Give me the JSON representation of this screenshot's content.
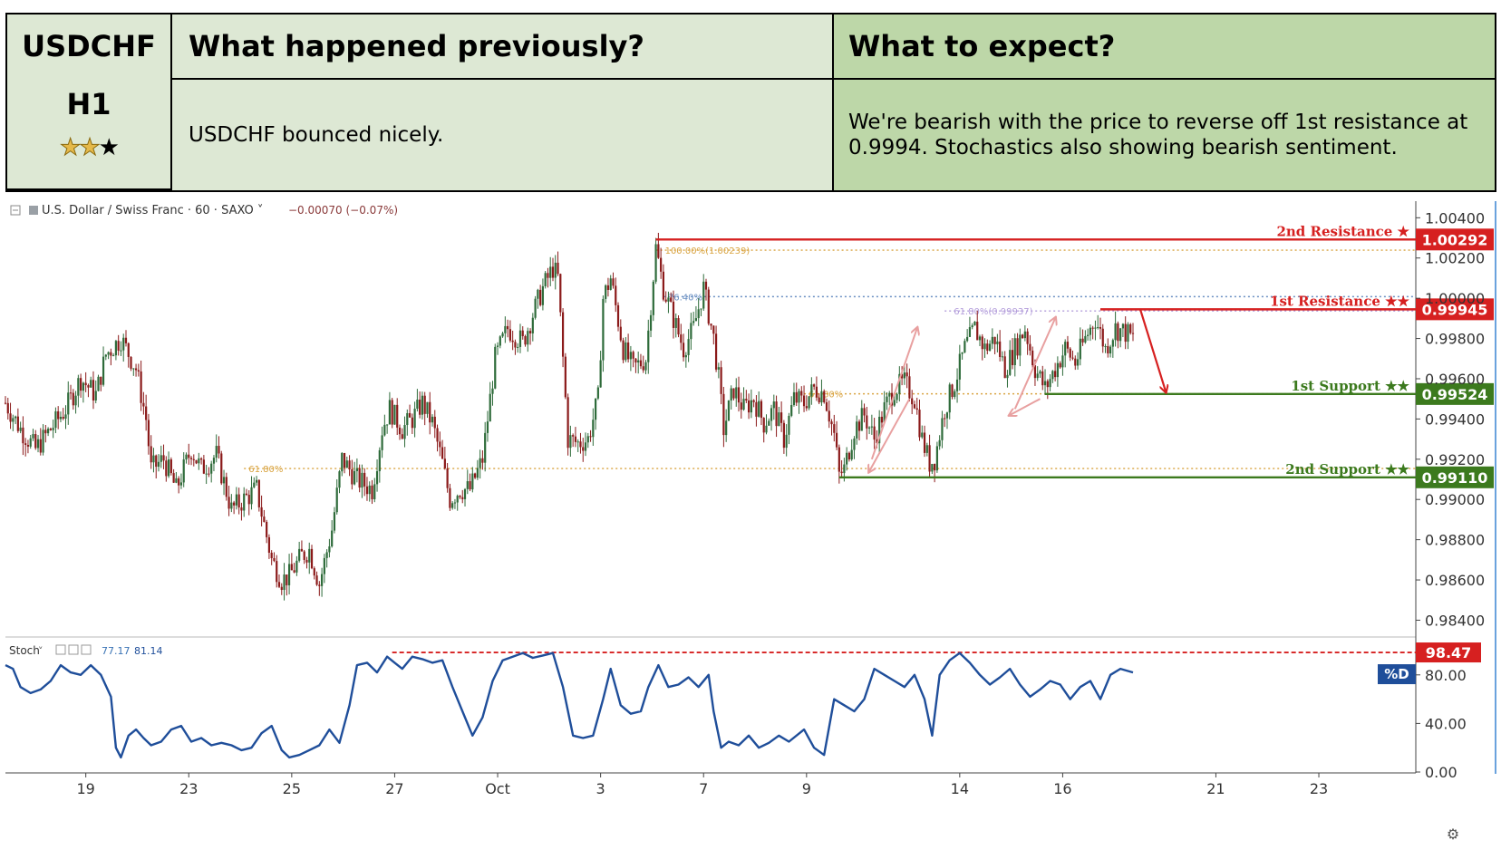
{
  "header": {
    "symbol": "USDCHF",
    "timeframe": "H1",
    "stars_filled": 2,
    "stars_total": 3,
    "col1_title": "What happened previously?",
    "col2_title": "What to expect?",
    "col1_text": "USDCHF bounced nicely.",
    "col2_text": "We're bearish with the price to reverse off 1st resistance at 0.9994. Stochastics also showing bearish sentiment."
  },
  "chart_data": {
    "type": "candlestick",
    "instrument": "U.S. Dollar / Swiss Franc",
    "interval": "60",
    "source": "SAXO",
    "change_text": "−0.00070 (−0.07%)",
    "price_ticks": [
      "1.00400",
      "1.00200",
      "1.00000",
      "0.99800",
      "0.99600",
      "0.99400",
      "0.99200",
      "0.99000",
      "0.98800",
      "0.98600",
      "0.98400"
    ],
    "price_range": [
      0.9833,
      1.0046
    ],
    "x_ticks": [
      "19",
      "23",
      "25",
      "27",
      "Oct",
      "3",
      "7",
      "9",
      "14",
      "16",
      "21",
      "23"
    ],
    "close_path": [
      [
        0,
        0.9948
      ],
      [
        6,
        0.9935
      ],
      [
        12,
        0.9925
      ],
      [
        18,
        0.9935
      ],
      [
        24,
        0.9945
      ],
      [
        30,
        0.996
      ],
      [
        36,
        0.9952
      ],
      [
        40,
        0.9972
      ],
      [
        46,
        0.998
      ],
      [
        52,
        0.9965
      ],
      [
        56,
        0.994
      ],
      [
        58,
        0.9915
      ],
      [
        63,
        0.992
      ],
      [
        68,
        0.9905
      ],
      [
        74,
        0.9925
      ],
      [
        78,
        0.9915
      ],
      [
        84,
        0.9922
      ],
      [
        90,
        0.9895
      ],
      [
        95,
        0.99
      ],
      [
        100,
        0.9905
      ],
      [
        106,
        0.987
      ],
      [
        110,
        0.986
      ],
      [
        113,
        0.9862
      ],
      [
        118,
        0.9872
      ],
      [
        121,
        0.9875
      ],
      [
        125,
        0.9858
      ],
      [
        130,
        0.9885
      ],
      [
        134,
        0.992
      ],
      [
        140,
        0.991
      ],
      [
        146,
        0.9905
      ],
      [
        150,
        0.9935
      ],
      [
        153,
        0.9945
      ],
      [
        158,
        0.9935
      ],
      [
        162,
        0.994
      ],
      [
        166,
        0.9948
      ],
      [
        170,
        0.9938
      ],
      [
        174,
        0.9918
      ],
      [
        177,
        0.99
      ],
      [
        181,
        0.9905
      ],
      [
        185,
        0.9905
      ],
      [
        190,
        0.992
      ],
      [
        195,
        0.997
      ],
      [
        200,
        0.9985
      ],
      [
        206,
        0.9978
      ],
      [
        210,
        0.9992
      ],
      [
        214,
        1.0005
      ],
      [
        218,
        1.0015
      ],
      [
        220,
        1.001
      ],
      [
        224,
        0.993
      ],
      [
        228,
        0.9928
      ],
      [
        232,
        0.993
      ],
      [
        236,
        0.995
      ],
      [
        238,
        1.0
      ],
      [
        241,
        1.001
      ],
      [
        246,
        0.9975
      ],
      [
        250,
        0.9965
      ],
      [
        255,
        0.997
      ],
      [
        259,
        1.0025
      ],
      [
        262,
        1.0005
      ],
      [
        266,
        0.999
      ],
      [
        270,
        0.9975
      ],
      [
        274,
        0.9985
      ],
      [
        278,
        1.0005
      ],
      [
        282,
        0.998
      ],
      [
        284,
        0.996
      ],
      [
        286,
        0.9935
      ],
      [
        290,
        0.9955
      ],
      [
        294,
        0.9945
      ],
      [
        298,
        0.995
      ],
      [
        302,
        0.9938
      ],
      [
        306,
        0.9945
      ],
      [
        310,
        0.993
      ],
      [
        314,
        0.995
      ],
      [
        318,
        0.9948
      ],
      [
        322,
        0.9955
      ],
      [
        326,
        0.9953
      ],
      [
        330,
        0.9932
      ],
      [
        332,
        0.9912
      ],
      [
        334,
        0.9915
      ],
      [
        338,
        0.9935
      ],
      [
        342,
        0.9942
      ],
      [
        346,
        0.993
      ],
      [
        350,
        0.9945
      ],
      [
        354,
        0.9955
      ],
      [
        358,
        0.9958
      ],
      [
        362,
        0.995
      ],
      [
        365,
        0.993
      ],
      [
        368,
        0.9918
      ],
      [
        370,
        0.992
      ],
      [
        374,
        0.9945
      ],
      [
        378,
        0.9958
      ],
      [
        382,
        0.9975
      ],
      [
        386,
        0.9985
      ],
      [
        390,
        0.9975
      ],
      [
        394,
        0.998
      ],
      [
        398,
        0.9965
      ],
      [
        402,
        0.9975
      ],
      [
        406,
        0.9985
      ],
      [
        410,
        0.9965
      ],
      [
        414,
        0.9955
      ],
      [
        418,
        0.9965
      ],
      [
        422,
        0.9975
      ],
      [
        426,
        0.9968
      ],
      [
        430,
        0.998
      ],
      [
        434,
        0.999
      ],
      [
        438,
        0.9975
      ],
      [
        442,
        0.9985
      ],
      [
        446,
        0.9983
      ],
      [
        449,
        0.998
      ]
    ],
    "x_index_max": 449,
    "levels": [
      {
        "label": "2nd Resistance ★",
        "value_label": "1.00292",
        "value": 1.00292,
        "color": "#d62020",
        "start_index": 259
      },
      {
        "label": "1st Resistance ★★",
        "value_label": "0.99945",
        "value": 0.99945,
        "color": "#d62020",
        "start_index": 436
      },
      {
        "label": "1st Support ★★",
        "value_label": "0.99524",
        "value": 0.99524,
        "color": "#3c7a1e",
        "start_index": 414
      },
      {
        "label": "2nd Support ★★",
        "value_label": "0.99110",
        "value": 0.9911,
        "color": "#3c7a1e",
        "start_index": 332
      }
    ],
    "fib_lines": [
      {
        "label": "100.00%(1.00239)",
        "value": 1.00239,
        "start_index": 259,
        "color": "#d9a441"
      },
      {
        "label": "76.40%",
        "value": 1.00008,
        "start_index": 262,
        "color": "#6a8fc2"
      },
      {
        "label": "61.80%(0.99937)",
        "value": 0.99937,
        "start_index": 374,
        "color": "#b39ddb"
      },
      {
        "label": "61.80%",
        "value": 0.99525,
        "start_index": 318,
        "color": "#d9a441"
      },
      {
        "label": "61.80%",
        "value": 0.99154,
        "start_index": 95,
        "color": "#d9a441"
      }
    ],
    "projection": {
      "from_index": 449,
      "from_value": 0.99945,
      "to_index": 462,
      "to_value": 0.99524
    },
    "stochastic": {
      "name": "Stoch",
      "k_value": "77.17",
      "d_value": "81.14",
      "series_label": "%D",
      "ticks": [
        "80.00",
        "40.00",
        "0.00"
      ],
      "range": [
        0,
        100
      ],
      "level_value": 98.47,
      "level_label": "98.47",
      "level_start_index": 154,
      "values": [
        [
          0,
          88
        ],
        [
          3,
          85
        ],
        [
          6,
          70
        ],
        [
          10,
          65
        ],
        [
          14,
          68
        ],
        [
          18,
          75
        ],
        [
          22,
          88
        ],
        [
          26,
          82
        ],
        [
          30,
          80
        ],
        [
          34,
          88
        ],
        [
          38,
          80
        ],
        [
          42,
          62
        ],
        [
          44,
          20
        ],
        [
          46,
          12
        ],
        [
          49,
          30
        ],
        [
          52,
          35
        ],
        [
          55,
          28
        ],
        [
          58,
          22
        ],
        [
          62,
          25
        ],
        [
          66,
          35
        ],
        [
          70,
          38
        ],
        [
          74,
          25
        ],
        [
          78,
          28
        ],
        [
          82,
          22
        ],
        [
          86,
          24
        ],
        [
          90,
          22
        ],
        [
          94,
          18
        ],
        [
          98,
          20
        ],
        [
          102,
          32
        ],
        [
          106,
          38
        ],
        [
          110,
          18
        ],
        [
          113,
          12
        ],
        [
          117,
          14
        ],
        [
          121,
          18
        ],
        [
          125,
          22
        ],
        [
          129,
          35
        ],
        [
          133,
          24
        ],
        [
          137,
          55
        ],
        [
          140,
          88
        ],
        [
          144,
          90
        ],
        [
          148,
          82
        ],
        [
          152,
          95
        ],
        [
          155,
          90
        ],
        [
          158,
          85
        ],
        [
          162,
          95
        ],
        [
          166,
          93
        ],
        [
          170,
          90
        ],
        [
          174,
          92
        ],
        [
          178,
          70
        ],
        [
          182,
          50
        ],
        [
          186,
          30
        ],
        [
          190,
          45
        ],
        [
          194,
          75
        ],
        [
          198,
          92
        ],
        [
          202,
          95
        ],
        [
          206,
          98
        ],
        [
          210,
          94
        ],
        [
          214,
          96
        ],
        [
          218,
          98
        ],
        [
          222,
          70
        ],
        [
          226,
          30
        ],
        [
          230,
          28
        ],
        [
          234,
          30
        ],
        [
          238,
          60
        ],
        [
          241,
          85
        ],
        [
          245,
          55
        ],
        [
          249,
          48
        ],
        [
          253,
          50
        ],
        [
          256,
          70
        ],
        [
          260,
          88
        ],
        [
          264,
          70
        ],
        [
          268,
          72
        ],
        [
          272,
          78
        ],
        [
          276,
          70
        ],
        [
          280,
          80
        ],
        [
          282,
          50
        ],
        [
          285,
          20
        ],
        [
          288,
          25
        ],
        [
          292,
          22
        ],
        [
          296,
          30
        ],
        [
          300,
          20
        ],
        [
          304,
          24
        ],
        [
          308,
          30
        ],
        [
          312,
          25
        ],
        [
          318,
          35
        ],
        [
          322,
          20
        ],
        [
          326,
          14
        ],
        [
          330,
          60
        ],
        [
          334,
          55
        ],
        [
          338,
          50
        ],
        [
          342,
          60
        ],
        [
          346,
          85
        ],
        [
          350,
          80
        ],
        [
          354,
          75
        ],
        [
          358,
          70
        ],
        [
          362,
          80
        ],
        [
          366,
          60
        ],
        [
          369,
          30
        ],
        [
          372,
          80
        ],
        [
          376,
          92
        ],
        [
          380,
          98
        ],
        [
          384,
          90
        ],
        [
          388,
          80
        ],
        [
          392,
          72
        ],
        [
          396,
          78
        ],
        [
          400,
          85
        ],
        [
          404,
          72
        ],
        [
          408,
          62
        ],
        [
          412,
          68
        ],
        [
          416,
          75
        ],
        [
          420,
          72
        ],
        [
          424,
          60
        ],
        [
          428,
          70
        ],
        [
          432,
          75
        ],
        [
          436,
          60
        ],
        [
          440,
          80
        ],
        [
          444,
          85
        ],
        [
          449,
          82
        ]
      ]
    }
  }
}
